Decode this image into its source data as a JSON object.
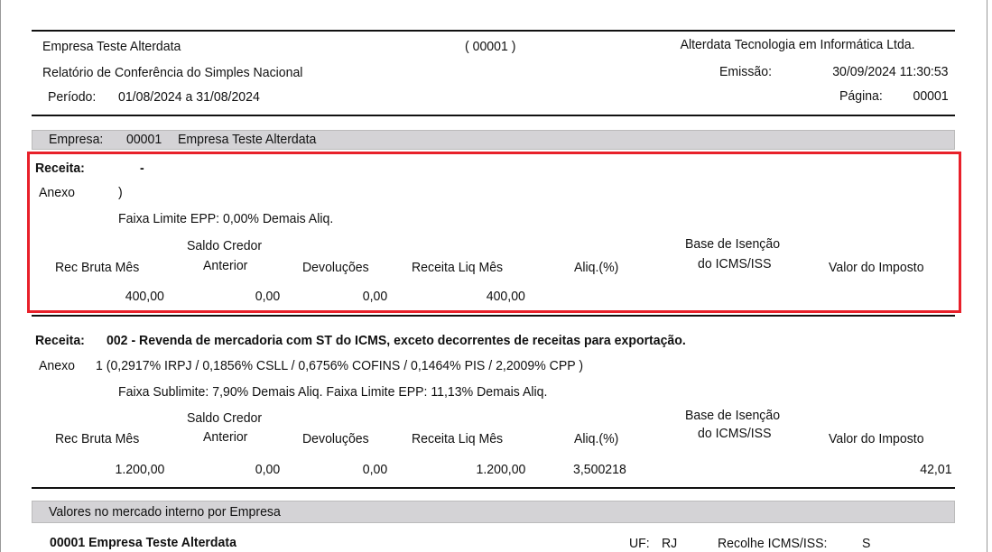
{
  "header": {
    "company": "Empresa Teste Alterdata",
    "code": "( 00001 )",
    "vendor": "Alterdata Tecnologia em Informática Ltda.",
    "report_title": "Relatório de Conferência do Simples Nacional",
    "emission_label": "Emissão:",
    "emission_value": "30/09/2024 11:30:53",
    "period_label": "Período:",
    "period_value": "01/08/2024 a 31/08/2024",
    "page_label": "Página:",
    "page_value": "00001"
  },
  "company_bar": {
    "label": "Empresa:",
    "code": "00001",
    "name": "Empresa Teste Alterdata"
  },
  "columns": {
    "rec_bruta": "Rec Bruta Mês",
    "saldo_1": "Saldo Credor",
    "saldo_2": "Anterior",
    "devolucoes": "Devoluções",
    "receita_liq": "Receita Liq Mês",
    "aliq": "Aliq.(%)",
    "base_1": "Base de Isenção",
    "base_2": "do ICMS/ISS",
    "valor": "Valor do Imposto"
  },
  "sections": [
    {
      "receita_label": "Receita:",
      "receita_value": "-",
      "anexo_label": "Anexo",
      "anexo_value": ")",
      "faixa": "Faixa Limite EPP: 0,00% Demais Aliq.",
      "values": {
        "rec_bruta": "400,00",
        "saldo": "0,00",
        "devolucoes": "0,00",
        "receita_liq": "400,00",
        "aliq": "",
        "valor": ""
      }
    },
    {
      "receita_label": "Receita:",
      "receita_value": "002  - Revenda de mercadoria com ST do ICMS, exceto decorrentes de receitas para exportação.",
      "anexo_label": "Anexo",
      "anexo_value": "1   (0,2917% IRPJ  / 0,1856% CSLL / 0,6756% COFINS / 0,1464% PIS  / 2,2009% CPP )",
      "faixa": "Faixa Sublimite: 7,90% Demais Aliq.    Faixa Limite EPP: 11,13% Demais Aliq.",
      "values": {
        "rec_bruta": "1.200,00",
        "saldo": "0,00",
        "devolucoes": "0,00",
        "receita_liq": "1.200,00",
        "aliq": "3,500218",
        "valor": "42,01"
      }
    }
  ],
  "market_bar": {
    "label": "Valores no mercado interno por Empresa"
  },
  "footer_row": {
    "code_name": "00001  Empresa Teste Alterdata",
    "uf_label": "UF:",
    "uf_value": "RJ",
    "recolhe_label": "Recolhe ICMS/ISS:",
    "recolhe_value": "S"
  },
  "colors": {
    "highlight": "#e8202a",
    "bar": "#d4d3d6"
  }
}
